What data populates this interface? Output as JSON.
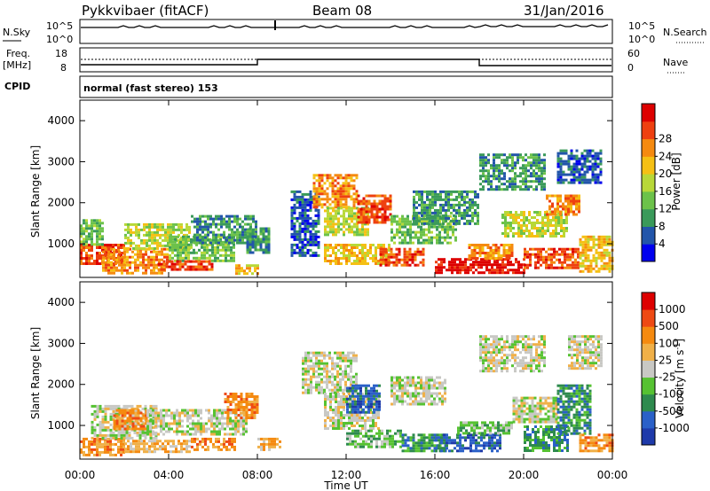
{
  "header": {
    "radar": "Pykkvibaer (fitACF)",
    "beam": "Beam 08",
    "date": "31/Jan/2016"
  },
  "panels": {
    "nsky_label": "N.Sky",
    "nsearch_label": "N.Search",
    "freq_label_1": "Freq.",
    "freq_label_2": "[MHz]",
    "nave_label": "Nave",
    "cpid_label": "CPID",
    "cpid_text": "normal (fast stereo) 153",
    "noise_ticks_left": [
      "10^5",
      "10^0"
    ],
    "noise_ticks_right": [
      "10^5",
      "10^0"
    ],
    "freq_ticks_left": [
      "18",
      "8"
    ],
    "nave_ticks_right": [
      "60",
      "0"
    ]
  },
  "chart_data": [
    {
      "type": "heatmap",
      "title": "",
      "xlabel": "Time UT",
      "ylabel": "Slant Range [km]",
      "xlim": [
        0,
        24
      ],
      "ylim": [
        180,
        4500
      ],
      "x_ticks": [
        "00:00",
        "04:00",
        "08:00",
        "12:00",
        "16:00",
        "20:00",
        "00:00"
      ],
      "y_ticks": [
        "1000",
        "2000",
        "3000",
        "4000"
      ],
      "colorbar": {
        "label": "Power [dB]",
        "ticks": [
          "4",
          "8",
          "12",
          "16",
          "20",
          "24",
          "28"
        ],
        "colors": [
          "#0000ee",
          "#2255aa",
          "#3a9a5a",
          "#6cc24a",
          "#b8d838",
          "#f5c014",
          "#f58a10",
          "#ee4010",
          "#dd0000"
        ]
      },
      "regions": [
        {
          "t0": 0.0,
          "t1": 2.0,
          "r0": 500,
          "r1": 1000,
          "level": 7
        },
        {
          "t0": 0.0,
          "t1": 1.0,
          "r0": 1000,
          "r1": 1600,
          "level": 3
        },
        {
          "t0": 1.0,
          "t1": 4.0,
          "r0": 300,
          "r1": 900,
          "level": 6
        },
        {
          "t0": 2.0,
          "t1": 5.0,
          "r0": 900,
          "r1": 1500,
          "level": 4
        },
        {
          "t0": 4.0,
          "t1": 7.0,
          "r0": 600,
          "r1": 1200,
          "level": 3
        },
        {
          "t0": 5.0,
          "t1": 8.0,
          "r0": 1000,
          "r1": 1700,
          "level": 2
        },
        {
          "t0": 3.5,
          "t1": 6.0,
          "r0": 350,
          "r1": 600,
          "level": 7
        },
        {
          "t0": 7.0,
          "t1": 8.0,
          "r0": 300,
          "r1": 500,
          "level": 5
        },
        {
          "t0": 7.5,
          "t1": 8.5,
          "r0": 800,
          "r1": 1400,
          "level": 2
        },
        {
          "t0": 9.5,
          "t1": 10.8,
          "r0": 700,
          "r1": 2300,
          "level": 1
        },
        {
          "t0": 10.5,
          "t1": 12.5,
          "r0": 1900,
          "r1": 2700,
          "level": 6
        },
        {
          "t0": 11.0,
          "t1": 13.0,
          "r0": 1200,
          "r1": 1900,
          "level": 4
        },
        {
          "t0": 11.0,
          "t1": 14.0,
          "r0": 500,
          "r1": 1000,
          "level": 5
        },
        {
          "t0": 12.5,
          "t1": 14.0,
          "r0": 1500,
          "r1": 2200,
          "level": 7
        },
        {
          "t0": 13.5,
          "t1": 15.5,
          "r0": 500,
          "r1": 900,
          "level": 7
        },
        {
          "t0": 14.0,
          "t1": 17.0,
          "r0": 1000,
          "r1": 1700,
          "level": 3
        },
        {
          "t0": 15.0,
          "t1": 18.0,
          "r0": 1500,
          "r1": 2300,
          "level": 2
        },
        {
          "t0": 16.0,
          "t1": 20.0,
          "r0": 300,
          "r1": 650,
          "level": 8
        },
        {
          "t0": 17.5,
          "t1": 19.5,
          "r0": 650,
          "r1": 1000,
          "level": 6
        },
        {
          "t0": 18.0,
          "t1": 21.0,
          "r0": 2300,
          "r1": 3200,
          "level": 2
        },
        {
          "t0": 19.0,
          "t1": 22.0,
          "r0": 1200,
          "r1": 1800,
          "level": 4
        },
        {
          "t0": 20.0,
          "t1": 22.5,
          "r0": 400,
          "r1": 900,
          "level": 7
        },
        {
          "t0": 21.0,
          "t1": 22.5,
          "r0": 1700,
          "r1": 2200,
          "level": 6
        },
        {
          "t0": 21.5,
          "t1": 23.5,
          "r0": 2500,
          "r1": 3300,
          "level": 1
        },
        {
          "t0": 22.5,
          "t1": 24.0,
          "r0": 300,
          "r1": 1200,
          "level": 5
        }
      ]
    },
    {
      "type": "heatmap",
      "title": "",
      "xlabel": "Time UT",
      "ylabel": "Slant Range [km]",
      "xlim": [
        0,
        24
      ],
      "ylim": [
        180,
        4500
      ],
      "x_ticks": [
        "00:00",
        "04:00",
        "08:00",
        "12:00",
        "16:00",
        "20:00",
        "00:00"
      ],
      "y_ticks": [
        "1000",
        "2000",
        "3000",
        "4000"
      ],
      "colorbar": {
        "label": "Velocity [m s^-1]",
        "ticks": [
          "1000",
          "500",
          "100",
          "25",
          "-25",
          "-100",
          "-500",
          "-1000"
        ],
        "colors": [
          "#1e3aaa",
          "#2a60c8",
          "#2e8a4e",
          "#56c232",
          "#c8c8c4",
          "#f0b048",
          "#f58a10",
          "#ee4a14",
          "#dd0000"
        ]
      },
      "regions": [
        {
          "t0": 0.0,
          "t1": 2.0,
          "r0": 300,
          "r1": 700,
          "level": 6
        },
        {
          "t0": 0.5,
          "t1": 3.5,
          "r0": 700,
          "r1": 1500,
          "level": 4
        },
        {
          "t0": 1.5,
          "t1": 3.0,
          "r0": 900,
          "r1": 1400,
          "level": 6
        },
        {
          "t0": 2.0,
          "t1": 5.0,
          "r0": 350,
          "r1": 650,
          "level": 5
        },
        {
          "t0": 3.0,
          "t1": 7.5,
          "r0": 800,
          "r1": 1400,
          "level": 4
        },
        {
          "t0": 5.0,
          "t1": 7.0,
          "r0": 400,
          "r1": 700,
          "level": 6
        },
        {
          "t0": 6.5,
          "t1": 8.0,
          "r0": 1200,
          "r1": 1800,
          "level": 6
        },
        {
          "t0": 8.0,
          "t1": 9.0,
          "r0": 400,
          "r1": 700,
          "level": 5
        },
        {
          "t0": 10.0,
          "t1": 12.5,
          "r0": 1800,
          "r1": 2800,
          "level": 4
        },
        {
          "t0": 11.0,
          "t1": 13.5,
          "r0": 900,
          "r1": 1800,
          "level": 4
        },
        {
          "t0": 12.0,
          "t1": 14.5,
          "r0": 500,
          "r1": 900,
          "level": 3
        },
        {
          "t0": 12.0,
          "t1": 13.5,
          "r0": 1300,
          "r1": 2000,
          "level": 1
        },
        {
          "t0": 14.5,
          "t1": 16.5,
          "r0": 400,
          "r1": 800,
          "level": 2
        },
        {
          "t0": 14.0,
          "t1": 16.5,
          "r0": 1500,
          "r1": 2200,
          "level": 4
        },
        {
          "t0": 16.0,
          "t1": 19.0,
          "r0": 350,
          "r1": 800,
          "level": 1
        },
        {
          "t0": 17.0,
          "t1": 19.5,
          "r0": 800,
          "r1": 1100,
          "level": 3
        },
        {
          "t0": 18.0,
          "t1": 21.0,
          "r0": 2300,
          "r1": 3200,
          "level": 4
        },
        {
          "t0": 19.5,
          "t1": 21.5,
          "r0": 1100,
          "r1": 1700,
          "level": 4
        },
        {
          "t0": 20.0,
          "t1": 22.0,
          "r0": 400,
          "r1": 1000,
          "level": 2
        },
        {
          "t0": 21.5,
          "t1": 23.0,
          "r0": 800,
          "r1": 2000,
          "level": 2
        },
        {
          "t0": 22.0,
          "t1": 23.5,
          "r0": 2400,
          "r1": 3200,
          "level": 4
        },
        {
          "t0": 22.5,
          "t1": 24.0,
          "r0": 350,
          "r1": 800,
          "level": 6
        }
      ]
    }
  ]
}
